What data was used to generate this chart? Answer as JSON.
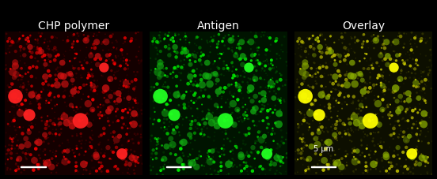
{
  "panel_titles": [
    "CHP polymer",
    "Antigen",
    "Overlay"
  ],
  "title_color": "white",
  "title_fontsize": 10,
  "background_color": "black",
  "scale_bar_text": "5 μm",
  "scale_bar_color": "white",
  "fig_width": 5.52,
  "fig_height": 2.28,
  "dpi": 100,
  "panel_bg_red": [
    0.08,
    0.0,
    0.0
  ],
  "panel_bg_green": [
    0.0,
    0.08,
    0.0
  ],
  "panel_bg_overlay": [
    0.05,
    0.06,
    0.0
  ],
  "num_small_dots": 300,
  "num_large_dots": 5,
  "seed": 42
}
